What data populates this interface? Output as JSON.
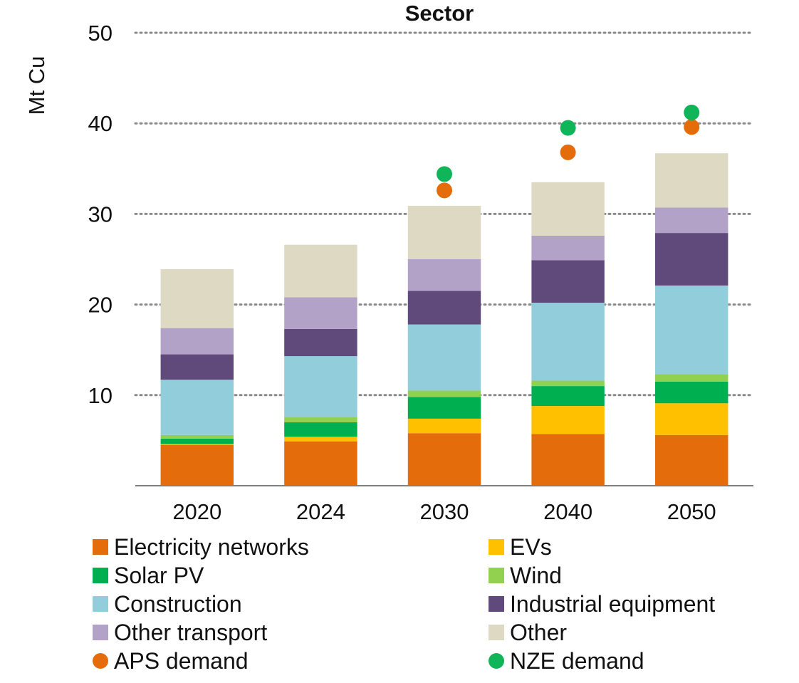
{
  "chart_data": {
    "type": "bar",
    "stacked": true,
    "title": "Sector",
    "ylabel": "Mt Cu",
    "xlabel": "",
    "ylim": [
      0,
      50
    ],
    "yticks": [
      10,
      20,
      30,
      40,
      50
    ],
    "grid": true,
    "legend_position": "bottom",
    "categories": [
      "2020",
      "2024",
      "2030",
      "2040",
      "2050"
    ],
    "series": [
      {
        "name": "Electricity networks",
        "color": "#E46C0A",
        "values": [
          4.5,
          4.9,
          5.8,
          5.7,
          5.6
        ]
      },
      {
        "name": "EVs",
        "color": "#FFC000",
        "values": [
          0.1,
          0.5,
          1.6,
          3.1,
          3.5
        ]
      },
      {
        "name": "Solar PV",
        "color": "#00B050",
        "values": [
          0.6,
          1.6,
          2.4,
          2.2,
          2.4
        ]
      },
      {
        "name": "Wind",
        "color": "#92D050",
        "values": [
          0.4,
          0.6,
          0.7,
          0.6,
          0.8
        ]
      },
      {
        "name": "Construction",
        "color": "#92CDDC",
        "values": [
          6.1,
          6.7,
          7.3,
          8.6,
          9.8
        ]
      },
      {
        "name": "Industrial equipment",
        "color": "#604A7B",
        "values": [
          2.8,
          3.0,
          3.7,
          4.7,
          5.8
        ]
      },
      {
        "name": "Other transport",
        "color": "#B3A2C7",
        "values": [
          2.9,
          3.5,
          3.5,
          2.7,
          2.8
        ]
      },
      {
        "name": "Other",
        "color": "#DDD9C3",
        "values": [
          6.5,
          5.8,
          5.9,
          5.9,
          6.0
        ]
      }
    ],
    "markers": [
      {
        "name": "APS demand",
        "color": "#E46C0A",
        "values": [
          null,
          null,
          32.6,
          36.8,
          39.6
        ]
      },
      {
        "name": "NZE demand",
        "color": "#10B55A",
        "values": [
          null,
          null,
          34.4,
          39.5,
          41.2
        ]
      }
    ]
  },
  "legend": {
    "items": [
      {
        "label": "Electricity networks",
        "color": "#E46C0A",
        "shape": "square"
      },
      {
        "label": "EVs",
        "color": "#FFC000",
        "shape": "square"
      },
      {
        "label": "Solar PV",
        "color": "#00B050",
        "shape": "square"
      },
      {
        "label": "Wind",
        "color": "#92D050",
        "shape": "square"
      },
      {
        "label": "Construction",
        "color": "#92CDDC",
        "shape": "square"
      },
      {
        "label": "Industrial equipment",
        "color": "#604A7B",
        "shape": "square"
      },
      {
        "label": "Other transport",
        "color": "#B3A2C7",
        "shape": "square"
      },
      {
        "label": "Other",
        "color": "#DDD9C3",
        "shape": "square"
      },
      {
        "label": "APS demand",
        "color": "#E46C0A",
        "shape": "circle"
      },
      {
        "label": "NZE demand",
        "color": "#10B55A",
        "shape": "circle"
      }
    ]
  }
}
